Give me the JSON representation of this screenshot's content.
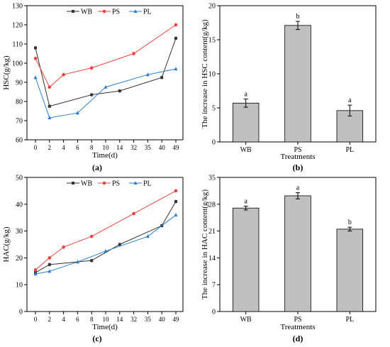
{
  "chart_data": [
    {
      "panel_label": "(a)",
      "type": "line",
      "xlabel": "Time(d)",
      "ylabel": "HSC(g/kg)",
      "x_ticks": [
        "0",
        "2",
        "4",
        "6",
        "8",
        "10",
        "14",
        "32",
        "35",
        "40",
        "49"
      ],
      "ylim": [
        60,
        130
      ],
      "y_ticks": [
        60,
        70,
        80,
        90,
        100,
        110,
        120,
        130
      ],
      "legend": "top",
      "series": [
        {
          "name": "WB",
          "color": "#333333",
          "marker": "square",
          "x": [
            "0",
            "2",
            "8",
            "14",
            "40",
            "49"
          ],
          "values": [
            108,
            77.5,
            83.5,
            85.5,
            92.5,
            113
          ]
        },
        {
          "name": "PS",
          "color": "#e8433f",
          "marker": "circle",
          "x": [
            "0",
            "2",
            "4",
            "8",
            "32",
            "49"
          ],
          "values": [
            102.5,
            87.5,
            94,
            97.5,
            105,
            120
          ]
        },
        {
          "name": "PL",
          "color": "#2b7fd1",
          "marker": "triangle",
          "x": [
            "0",
            "2",
            "6",
            "10",
            "35",
            "49"
          ],
          "values": [
            92.5,
            71.5,
            74,
            87.5,
            94,
            97
          ]
        }
      ]
    },
    {
      "panel_label": "(b)",
      "type": "bar",
      "xlabel": "Treatments",
      "ylabel": "The increase in HSC content(g/kg)",
      "categories": [
        "WB",
        "PS",
        "PL"
      ],
      "values": [
        5.7,
        17.1,
        4.6
      ],
      "errors": [
        0.6,
        0.6,
        0.8
      ],
      "letters": [
        "a",
        "b",
        "a"
      ],
      "ylim": [
        0,
        20
      ],
      "y_ticks": [
        0,
        5,
        10,
        15,
        20
      ],
      "bar_color": "#c0c0c0"
    },
    {
      "panel_label": "(c)",
      "type": "line",
      "xlabel": "Time(d)",
      "ylabel": "HAC(g/kg)",
      "x_ticks": [
        "0",
        "2",
        "4",
        "6",
        "8",
        "10",
        "14",
        "32",
        "35",
        "40",
        "49"
      ],
      "ylim": [
        0,
        50
      ],
      "y_ticks": [
        0,
        10,
        20,
        30,
        40,
        50
      ],
      "legend": "top",
      "series": [
        {
          "name": "WB",
          "color": "#333333",
          "marker": "square",
          "x": [
            "0",
            "2",
            "8",
            "14",
            "40",
            "49"
          ],
          "values": [
            14.5,
            17.5,
            19,
            25,
            32,
            41
          ]
        },
        {
          "name": "PS",
          "color": "#e8433f",
          "marker": "circle",
          "x": [
            "0",
            "2",
            "4",
            "8",
            "32",
            "49"
          ],
          "values": [
            15.5,
            20,
            24,
            28,
            36.5,
            45
          ]
        },
        {
          "name": "PL",
          "color": "#2b7fd1",
          "marker": "triangle",
          "x": [
            "0",
            "2",
            "6",
            "10",
            "35",
            "49"
          ],
          "values": [
            14,
            15,
            18.5,
            22.5,
            28,
            36
          ]
        }
      ]
    },
    {
      "panel_label": "(d)",
      "type": "bar",
      "xlabel": "Treatments",
      "ylabel": "The increase in HAC content(g/kg)",
      "categories": [
        "WB",
        "PS",
        "PL"
      ],
      "values": [
        27,
        30.2,
        21.5
      ],
      "errors": [
        0.5,
        0.8,
        0.5
      ],
      "letters": [
        "a",
        "a",
        "b"
      ],
      "ylim": [
        0,
        35
      ],
      "y_ticks": [
        0,
        7,
        14,
        21,
        28,
        35
      ],
      "bar_color": "#c0c0c0"
    }
  ]
}
